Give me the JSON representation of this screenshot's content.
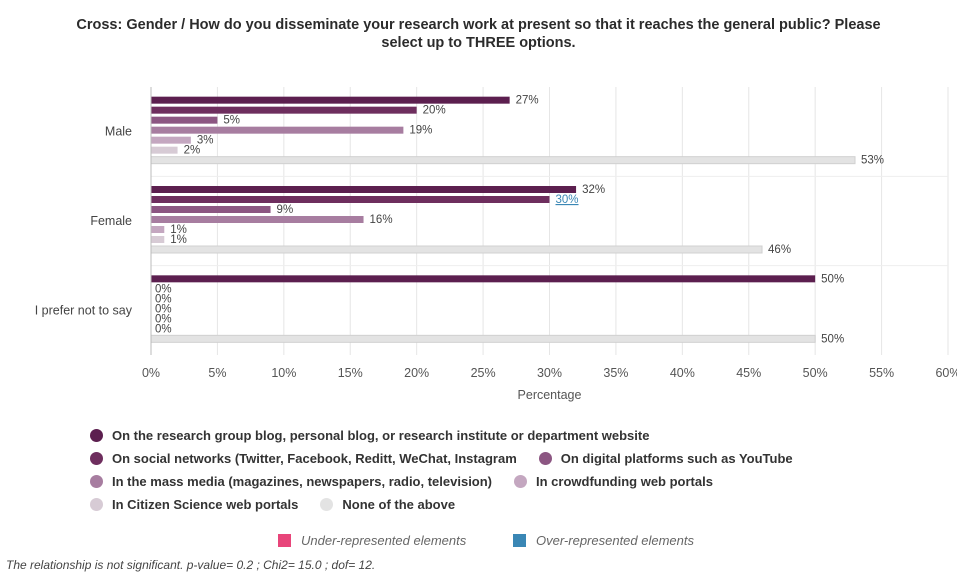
{
  "chart_data": {
    "type": "bar",
    "orientation": "horizontal",
    "title_line1": "Cross: Gender / How do you disseminate your research work at present so that it reaches the general public? Please",
    "title_line2": "select up to THREE options.",
    "xlabel": "Percentage",
    "ylabel": "",
    "xlim": [
      0,
      60
    ],
    "x_ticks": [
      "0%",
      "5%",
      "10%",
      "15%",
      "20%",
      "25%",
      "30%",
      "35%",
      "40%",
      "45%",
      "50%",
      "55%",
      "60%"
    ],
    "grid": true,
    "legend_position": "bottom",
    "categories": [
      "Male",
      "Female",
      "I prefer not to say"
    ],
    "series": [
      {
        "name": "On the research group blog, personal blog, or research institute or department website",
        "color": "#5c1f4f",
        "values": [
          27,
          32,
          50
        ],
        "labels": [
          "27%",
          "32%",
          "50%"
        ]
      },
      {
        "name": "On social networks (Twitter, Facebook, Reditt, WeChat, Instagram",
        "color": "#6e2e5e",
        "values": [
          20,
          30,
          0
        ],
        "labels": [
          "20%",
          "30%",
          "0%"
        ]
      },
      {
        "name": "On digital platforms such as YouTube",
        "color": "#8c5682",
        "values": [
          5,
          9,
          0
        ],
        "labels": [
          "5%",
          "9%",
          "0%"
        ]
      },
      {
        "name": "In the mass media (magazines, newspapers, radio, television)",
        "color": "#a77da0",
        "values": [
          19,
          16,
          0
        ],
        "labels": [
          "19%",
          "16%",
          "0%"
        ]
      },
      {
        "name": "In crowdfunding web portals",
        "color": "#c4a7c0",
        "values": [
          3,
          1,
          0
        ],
        "labels": [
          "3%",
          "1%",
          "0%"
        ]
      },
      {
        "name": "In Citizen Science web portals",
        "color": "#d7cbd5",
        "values": [
          2,
          1,
          0
        ],
        "labels": [
          "2%",
          "1%",
          "0%"
        ]
      },
      {
        "name": "None of the above",
        "color": "#e3e3e3",
        "values": [
          53,
          46,
          50
        ],
        "labels": [
          "53%",
          "46%",
          "50%"
        ]
      }
    ],
    "highlights": [
      {
        "category": "Female",
        "series_index": 1,
        "status": "over-represented"
      }
    ],
    "representation_legend": [
      {
        "label": "Under-represented elements",
        "color": "#e8457a"
      },
      {
        "label": "Over-represented elements",
        "color": "#3a87b5"
      }
    ],
    "footnote": "The relationship is not significant. p-value= 0.2 ; Chi2= 15.0 ; dof= 12."
  }
}
